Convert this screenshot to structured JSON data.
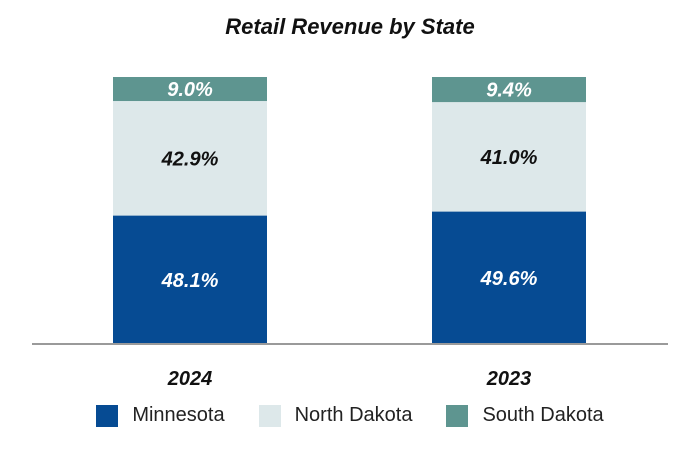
{
  "chart_data": {
    "type": "bar",
    "stacked": true,
    "title": "Retail Revenue by State",
    "xlabel": "",
    "ylabel": "",
    "ylim": [
      0,
      100
    ],
    "categories": [
      "2024",
      "2023"
    ],
    "series": [
      {
        "name": "Minnesota",
        "color": "#064B93",
        "label_color": "#ffffff",
        "values": [
          48.1,
          49.6
        ],
        "labels": [
          "48.1%",
          "49.6%"
        ]
      },
      {
        "name": "North Dakota",
        "color": "#DDE8EA",
        "label_color": "#111111",
        "values": [
          42.9,
          41.0
        ],
        "labels": [
          "42.9%",
          "41.0%"
        ]
      },
      {
        "name": "South Dakota",
        "color": "#5E9590",
        "label_color": "#ffffff",
        "values": [
          9.0,
          9.4
        ],
        "labels": [
          "9.0%",
          "9.4%"
        ]
      }
    ],
    "legend_position": "bottom",
    "grid": false
  }
}
